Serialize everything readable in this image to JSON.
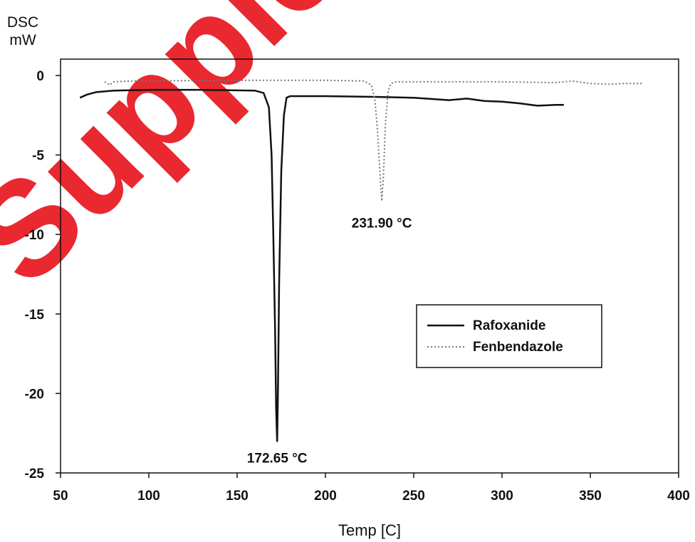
{
  "watermark": {
    "text": "Supplem",
    "color": "#e8161f"
  },
  "chart_data": {
    "type": "line",
    "title": "",
    "xlabel": "Temp [C]",
    "ylabel_line1": "DSC",
    "ylabel_line2": "mW",
    "xlim": [
      50,
      400
    ],
    "ylim": [
      -25,
      1
    ],
    "xticks": [
      50,
      100,
      150,
      200,
      250,
      300,
      350,
      400
    ],
    "yticks": [
      0,
      -5,
      -10,
      -15,
      -20,
      -25
    ],
    "grid": false,
    "legend": {
      "position": "center-right",
      "entries": [
        "Rafoxanide",
        "Fenbendazole"
      ]
    },
    "series": [
      {
        "name": "Rafoxanide",
        "style": "solid",
        "color": "#111111",
        "points": [
          [
            61,
            -1.4
          ],
          [
            65,
            -1.2
          ],
          [
            70,
            -1.05
          ],
          [
            80,
            -0.95
          ],
          [
            100,
            -0.9
          ],
          [
            130,
            -0.9
          ],
          [
            160,
            -0.95
          ],
          [
            165,
            -1.1
          ],
          [
            168,
            -2.0
          ],
          [
            169.5,
            -5.0
          ],
          [
            170.5,
            -10.0
          ],
          [
            171.5,
            -16.0
          ],
          [
            172.1,
            -21.0
          ],
          [
            172.65,
            -23.0
          ],
          [
            173.1,
            -20.0
          ],
          [
            173.8,
            -13.0
          ],
          [
            175,
            -6.0
          ],
          [
            176.5,
            -2.5
          ],
          [
            178,
            -1.4
          ],
          [
            180,
            -1.3
          ],
          [
            200,
            -1.3
          ],
          [
            230,
            -1.35
          ],
          [
            250,
            -1.4
          ],
          [
            270,
            -1.55
          ],
          [
            280,
            -1.45
          ],
          [
            290,
            -1.6
          ],
          [
            300,
            -1.65
          ],
          [
            310,
            -1.75
          ],
          [
            320,
            -1.9
          ],
          [
            330,
            -1.85
          ],
          [
            335,
            -1.85
          ]
        ]
      },
      {
        "name": "Fenbendazole",
        "style": "dotted",
        "color": "#777777",
        "points": [
          [
            75,
            -0.4
          ],
          [
            78,
            -0.6
          ],
          [
            80,
            -0.4
          ],
          [
            90,
            -0.35
          ],
          [
            150,
            -0.3
          ],
          [
            200,
            -0.3
          ],
          [
            222,
            -0.35
          ],
          [
            226,
            -0.6
          ],
          [
            228,
            -1.5
          ],
          [
            229.5,
            -3.5
          ],
          [
            230.8,
            -6.0
          ],
          [
            231.9,
            -7.9
          ],
          [
            232.8,
            -6.5
          ],
          [
            234,
            -3.0
          ],
          [
            235.5,
            -1.0
          ],
          [
            237,
            -0.5
          ],
          [
            240,
            -0.4
          ],
          [
            260,
            -0.4
          ],
          [
            300,
            -0.4
          ],
          [
            330,
            -0.45
          ],
          [
            340,
            -0.35
          ],
          [
            350,
            -0.5
          ],
          [
            360,
            -0.55
          ],
          [
            370,
            -0.5
          ],
          [
            380,
            -0.5
          ]
        ]
      }
    ],
    "annotations": [
      {
        "text": "231.90 °C",
        "x": 231.9,
        "y": -9.2
      },
      {
        "text": "172.65 °C",
        "x": 172.65,
        "y": -24.0
      }
    ]
  }
}
